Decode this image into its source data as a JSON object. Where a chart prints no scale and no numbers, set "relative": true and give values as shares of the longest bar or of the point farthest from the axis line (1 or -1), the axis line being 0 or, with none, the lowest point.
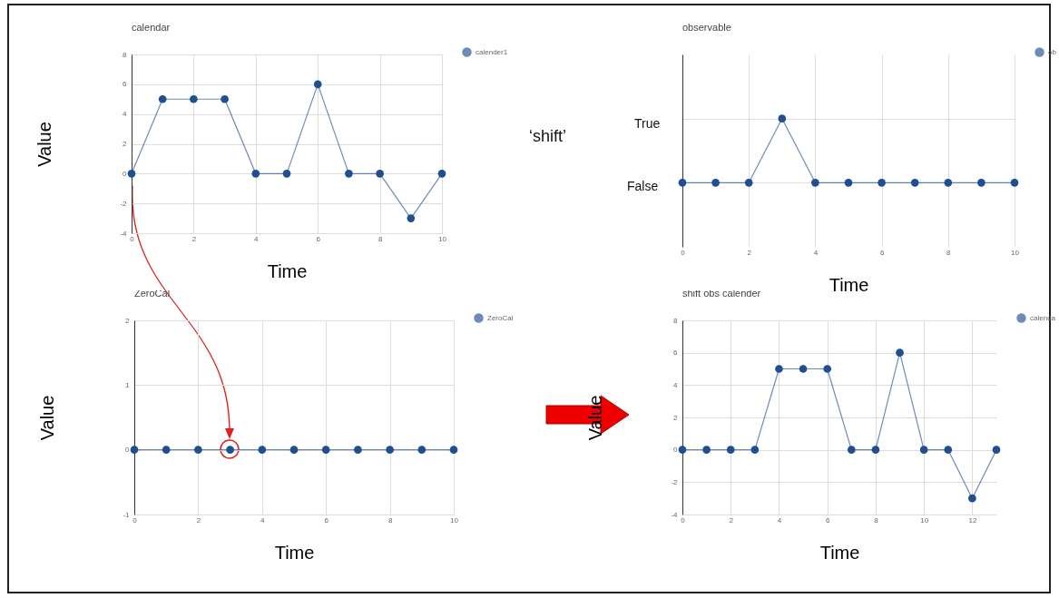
{
  "chart_data": [
    {
      "type": "line",
      "title": "calendar",
      "xlabel": "Time",
      "ylabel": "Value",
      "x": [
        0,
        1,
        2,
        3,
        4,
        5,
        6,
        7,
        8,
        9,
        10
      ],
      "series": [
        {
          "name": "calender1",
          "color": "#1f4e91",
          "values": [
            0,
            5,
            5,
            5,
            0,
            0,
            6,
            0,
            0,
            -3,
            0
          ]
        }
      ],
      "xlim": [
        0,
        10
      ],
      "xticks": [
        0,
        2,
        4,
        6,
        8,
        10
      ],
      "ylim": [
        -4,
        8
      ],
      "yticks": [
        -4,
        -2,
        0,
        2,
        4,
        6,
        8
      ],
      "grid": true,
      "legend": "top right",
      "marker": "circle"
    },
    {
      "type": "line",
      "title": "observable",
      "xlabel": "Time",
      "x": [
        0,
        1,
        2,
        3,
        4,
        5,
        6,
        7,
        8,
        9,
        10
      ],
      "series": [
        {
          "name": "ob",
          "color": "#1f4e91",
          "values": [
            0,
            0,
            0,
            1,
            0,
            0,
            0,
            0,
            0,
            0,
            0
          ]
        }
      ],
      "xlim": [
        0,
        10
      ],
      "xticks": [
        0,
        2,
        4,
        6,
        8,
        10
      ],
      "relative": true,
      "grid": true,
      "legend": "top right",
      "marker": "circle",
      "annotations": [
        "‘shift’",
        "True",
        "False"
      ]
    },
    {
      "type": "line",
      "title": "ZeroCal",
      "xlabel": "Time",
      "ylabel": "Value",
      "x": [
        0,
        1,
        2,
        3,
        4,
        5,
        6,
        7,
        8,
        9,
        10
      ],
      "series": [
        {
          "name": "ZeroCal",
          "color": "#1f4e91",
          "values": [
            0,
            0,
            0,
            0,
            0,
            0,
            0,
            0,
            0,
            0,
            0
          ]
        }
      ],
      "xlim": [
        0,
        10
      ],
      "xticks": [
        0,
        2,
        4,
        6,
        8,
        10
      ],
      "ylim": [
        -1,
        2
      ],
      "yticks": [
        -1,
        0,
        1,
        2
      ],
      "grid": true,
      "legend": "top right",
      "marker": "circle"
    },
    {
      "type": "line",
      "title": "shift obs calender",
      "xlabel": "Time",
      "ylabel": "Value",
      "x": [
        0,
        1,
        2,
        3,
        4,
        5,
        6,
        7,
        8,
        9,
        10,
        11,
        12,
        13
      ],
      "series": [
        {
          "name": "calenda",
          "color": "#1f4e91",
          "values": [
            0,
            0,
            0,
            0,
            5,
            5,
            5,
            0,
            0,
            6,
            0,
            0,
            -3,
            0
          ]
        }
      ],
      "xlim": [
        0,
        13
      ],
      "xticks": [
        0,
        2,
        4,
        6,
        8,
        10,
        12
      ],
      "ylim": [
        -4,
        8
      ],
      "yticks": [
        -4,
        -2,
        0,
        2,
        4,
        6,
        8
      ],
      "grid": true,
      "legend": "top right",
      "marker": "circle"
    }
  ]
}
